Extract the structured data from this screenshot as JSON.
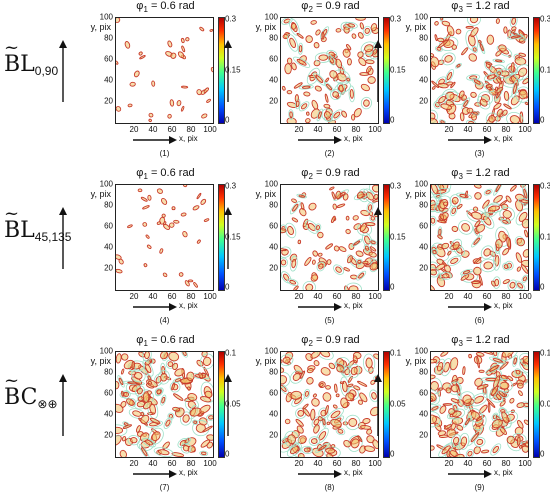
{
  "rows": [
    {
      "name": "BL",
      "sub": "0,90"
    },
    {
      "name": "BL",
      "sub": "45,135"
    },
    {
      "name": "BC",
      "sub": "⊗⊕"
    }
  ],
  "tilde": "~",
  "phi_symbol": "φ",
  "axes": {
    "y_label": "y, pix",
    "x_label": "x, pix",
    "y_ticks": [
      "100",
      "80",
      "60",
      "40",
      "20"
    ],
    "x_ticks": [
      "20",
      "40",
      "60",
      "80",
      "100"
    ]
  },
  "chart_data": [
    {
      "type": "heatmap",
      "index": "(1)",
      "phi_index": "1",
      "phi_value": "= 0.6 rad",
      "colorbar": [
        "0.3",
        "0.15",
        "0"
      ],
      "density": 0.1,
      "xlim": [
        0,
        100
      ],
      "ylim": [
        0,
        100
      ]
    },
    {
      "type": "heatmap",
      "index": "(2)",
      "phi_index": "2",
      "phi_value": "= 0.9 rad",
      "colorbar": [
        "0.3",
        "0.15",
        "0"
      ],
      "density": 0.55,
      "xlim": [
        0,
        100
      ],
      "ylim": [
        0,
        100
      ]
    },
    {
      "type": "heatmap",
      "index": "(3)",
      "phi_index": "3",
      "phi_value": "= 1.2 rad",
      "colorbar": [
        "0.3",
        "0.15",
        "0"
      ],
      "density": 0.75,
      "xlim": [
        0,
        100
      ],
      "ylim": [
        0,
        100
      ]
    },
    {
      "type": "heatmap",
      "index": "(4)",
      "phi_index": "1",
      "phi_value": "= 0.6 rad",
      "colorbar": [
        "0.3",
        "0.15",
        "0"
      ],
      "density": 0.12,
      "xlim": [
        0,
        100
      ],
      "ylim": [
        0,
        100
      ]
    },
    {
      "type": "heatmap",
      "index": "(5)",
      "phi_index": "2",
      "phi_value": "= 0.9 rad",
      "colorbar": [
        "0.3",
        "0.15",
        "0"
      ],
      "density": 0.5,
      "xlim": [
        0,
        100
      ],
      "ylim": [
        0,
        100
      ]
    },
    {
      "type": "heatmap",
      "index": "(6)",
      "phi_index": "3",
      "phi_value": "= 1.2 rad",
      "colorbar": [
        "0.3",
        "0.15",
        "0"
      ],
      "density": 0.7,
      "xlim": [
        0,
        100
      ],
      "ylim": [
        0,
        100
      ]
    },
    {
      "type": "heatmap",
      "index": "(7)",
      "phi_index": "1",
      "phi_value": "= 0.6 rad",
      "colorbar": [
        "0.1",
        "0.05",
        "0"
      ],
      "density": 0.8,
      "xlim": [
        0,
        100
      ],
      "ylim": [
        0,
        100
      ]
    },
    {
      "type": "heatmap",
      "index": "(8)",
      "phi_index": "2",
      "phi_value": "= 0.9 rad",
      "colorbar": [
        "0.1",
        "0.05",
        "0"
      ],
      "density": 0.7,
      "xlim": [
        0,
        100
      ],
      "ylim": [
        0,
        100
      ]
    },
    {
      "type": "heatmap",
      "index": "(9)",
      "phi_index": "3",
      "phi_value": "= 1.2 rad",
      "colorbar": [
        "0.1",
        "0.05",
        "0"
      ],
      "density": 0.9,
      "xlim": [
        0,
        100
      ],
      "ylim": [
        0,
        100
      ]
    }
  ],
  "colors": {
    "blob_outer": "#c83a2a",
    "blob_inner": "#f2c26a",
    "halo": "#9fe0c8"
  }
}
